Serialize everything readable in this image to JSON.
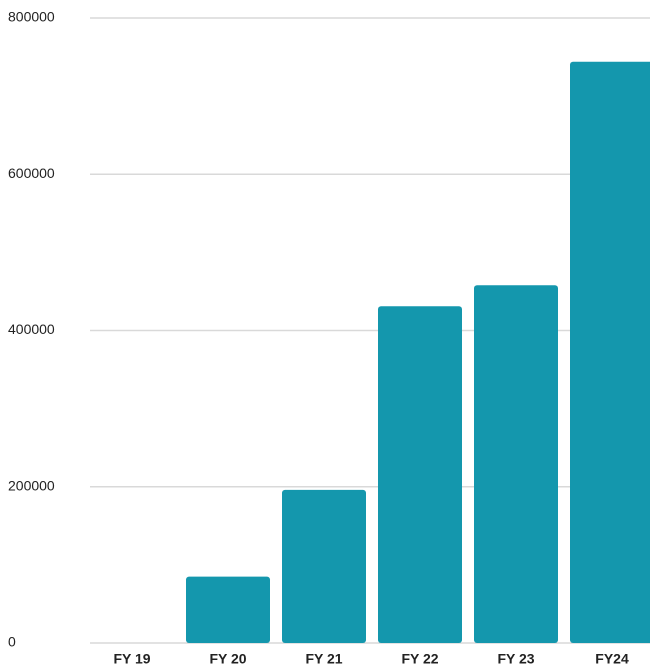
{
  "chart_data": {
    "type": "bar",
    "categories": [
      "FY 19",
      "FY 20",
      "FY 21",
      "FY 22",
      "FY 23",
      "FY24"
    ],
    "values": [
      0,
      85000,
      196000,
      431000,
      458000,
      744000
    ],
    "color": "#1497ad",
    "ylim": [
      0,
      800000
    ],
    "yticks": [
      0,
      200000,
      400000,
      600000,
      800000
    ],
    "grid": true
  }
}
